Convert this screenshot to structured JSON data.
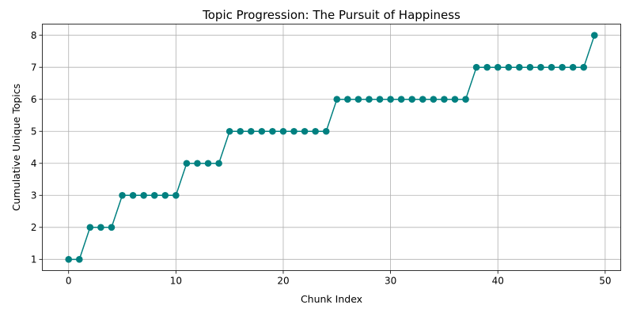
{
  "chart_data": {
    "type": "line",
    "title": "Topic Progression: The Pursuit of Happiness",
    "xlabel": "Chunk Index",
    "ylabel": "Cumulative Unique Topics",
    "xlim": [
      -2.45,
      51.45
    ],
    "ylim": [
      0.65,
      8.35
    ],
    "xticks": [
      0,
      10,
      20,
      30,
      40,
      50
    ],
    "yticks": [
      1,
      2,
      3,
      4,
      5,
      6,
      7,
      8
    ],
    "grid": true,
    "color": "#008080",
    "x": [
      0,
      1,
      2,
      3,
      4,
      5,
      6,
      7,
      8,
      9,
      10,
      11,
      12,
      13,
      14,
      15,
      16,
      17,
      18,
      19,
      20,
      21,
      22,
      23,
      24,
      25,
      26,
      27,
      28,
      29,
      30,
      31,
      32,
      33,
      34,
      35,
      36,
      37,
      38,
      39,
      40,
      41,
      42,
      43,
      44,
      45,
      46,
      47,
      48,
      49
    ],
    "y": [
      1,
      1,
      2,
      2,
      2,
      3,
      3,
      3,
      3,
      3,
      3,
      4,
      4,
      4,
      4,
      5,
      5,
      5,
      5,
      5,
      5,
      5,
      5,
      5,
      5,
      6,
      6,
      6,
      6,
      6,
      6,
      6,
      6,
      6,
      6,
      6,
      6,
      6,
      7,
      7,
      7,
      7,
      7,
      7,
      7,
      7,
      7,
      7,
      7,
      8
    ]
  }
}
